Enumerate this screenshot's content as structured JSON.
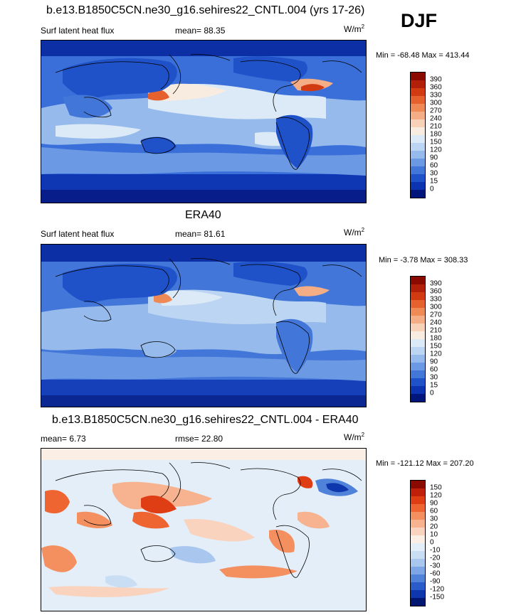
{
  "season": "DJF",
  "panels": [
    {
      "title": "b.e13.B1850C5CN.ne30_g16.sehires22_CNTL.004 (yrs 17-26)",
      "left_label": "Surf latent heat flux",
      "center_label": "mean=  88.35",
      "units": "W/m",
      "units_sup": "2",
      "minmax": "Min = -68.48 Max = 413.44",
      "colorbar": {
        "labels": [
          "390",
          "360",
          "330",
          "300",
          "270",
          "240",
          "210",
          "180",
          "150",
          "120",
          "90",
          "60",
          "30",
          "15",
          "0"
        ],
        "colors": [
          "#8b0a00",
          "#b3200a",
          "#d23b12",
          "#e5612e",
          "#ef8a57",
          "#f5ad86",
          "#f8d2b8",
          "#f7ecdf",
          "#dce9f7",
          "#bcd5f2",
          "#95baeb",
          "#6b99e3",
          "#4276d8",
          "#1f52c8",
          "#0c33b0",
          "#00167a"
        ]
      }
    },
    {
      "title": "ERA40",
      "left_label": "Surf latent heat flux",
      "center_label": "mean=  81.61",
      "units": "W/m",
      "units_sup": "2",
      "minmax": "Min =  -3.78 Max = 308.33",
      "colorbar": {
        "labels": [
          "390",
          "360",
          "330",
          "300",
          "270",
          "240",
          "210",
          "180",
          "150",
          "120",
          "90",
          "60",
          "30",
          "15",
          "0"
        ],
        "colors": [
          "#8b0a00",
          "#b3200a",
          "#d23b12",
          "#e5612e",
          "#ef8a57",
          "#f5ad86",
          "#f8d2b8",
          "#f7ecdf",
          "#dce9f7",
          "#bcd5f2",
          "#95baeb",
          "#6b99e3",
          "#4276d8",
          "#1f52c8",
          "#0c33b0",
          "#00167a"
        ]
      }
    },
    {
      "title": "b.e13.B1850C5CN.ne30_g16.sehires22_CNTL.004 - ERA40",
      "left_label": "mean=   6.73",
      "center_label": "rmse=  22.80",
      "units": "W/m",
      "units_sup": "2",
      "minmax": "Min = -121.12 Max = 207.20",
      "colorbar": {
        "labels": [
          "150",
          "120",
          "90",
          "60",
          "30",
          "20",
          "10",
          "0",
          "-10",
          "-20",
          "-30",
          "-60",
          "-90",
          "-120",
          "-150"
        ],
        "colors": [
          "#8b0a00",
          "#c0200a",
          "#df3d14",
          "#ee6532",
          "#f48f5f",
          "#f7b38f",
          "#f9d3bd",
          "#fbeee5",
          "#e3eef9",
          "#c9ddf3",
          "#a8c6ee",
          "#7ea6e6",
          "#5082da",
          "#2a5cc9",
          "#0f37ad",
          "#001670"
        ]
      }
    }
  ]
}
